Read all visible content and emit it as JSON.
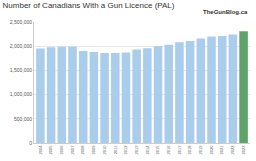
{
  "chart_data": {
    "type": "bar",
    "title": "Number of Canadians With a Gun Licence (PAL)",
    "annotations": [
      "TheGunBlog.ca"
    ],
    "categories": [
      "2004",
      "2005",
      "2006",
      "2007",
      "2008",
      "2009",
      "2010",
      "2011",
      "2012",
      "2013",
      "2014",
      "2015",
      "2016",
      "2017",
      "2018",
      "2019",
      "2020",
      "2021",
      "2022",
      "2023"
    ],
    "values": [
      1950000,
      1980000,
      1990000,
      1990000,
      1900000,
      1880000,
      1860000,
      1860000,
      1870000,
      1930000,
      1960000,
      2000000,
      2030000,
      2080000,
      2110000,
      2160000,
      2200000,
      2210000,
      2240000,
      2310000
    ],
    "colors": [
      "#a9cdea",
      "#a9cdea",
      "#a9cdea",
      "#a9cdea",
      "#a9cdea",
      "#a9cdea",
      "#a9cdea",
      "#a9cdea",
      "#a9cdea",
      "#a9cdea",
      "#a9cdea",
      "#a9cdea",
      "#a9cdea",
      "#a9cdea",
      "#a9cdea",
      "#a9cdea",
      "#a9cdea",
      "#a9cdea",
      "#a9cdea",
      "#5fa36a"
    ],
    "ylim": [
      0,
      2500000
    ],
    "yticks": [
      0,
      {
        "value": 500000,
        "label": "500,000"
      },
      {
        "value": 1000000,
        "label": "1,000,000"
      },
      {
        "value": 1500000,
        "label": "1,500,000"
      },
      {
        "value": 2000000,
        "label": "2,000,000"
      },
      {
        "value": 2500000,
        "label": "2,500,000"
      }
    ],
    "grid": true
  }
}
